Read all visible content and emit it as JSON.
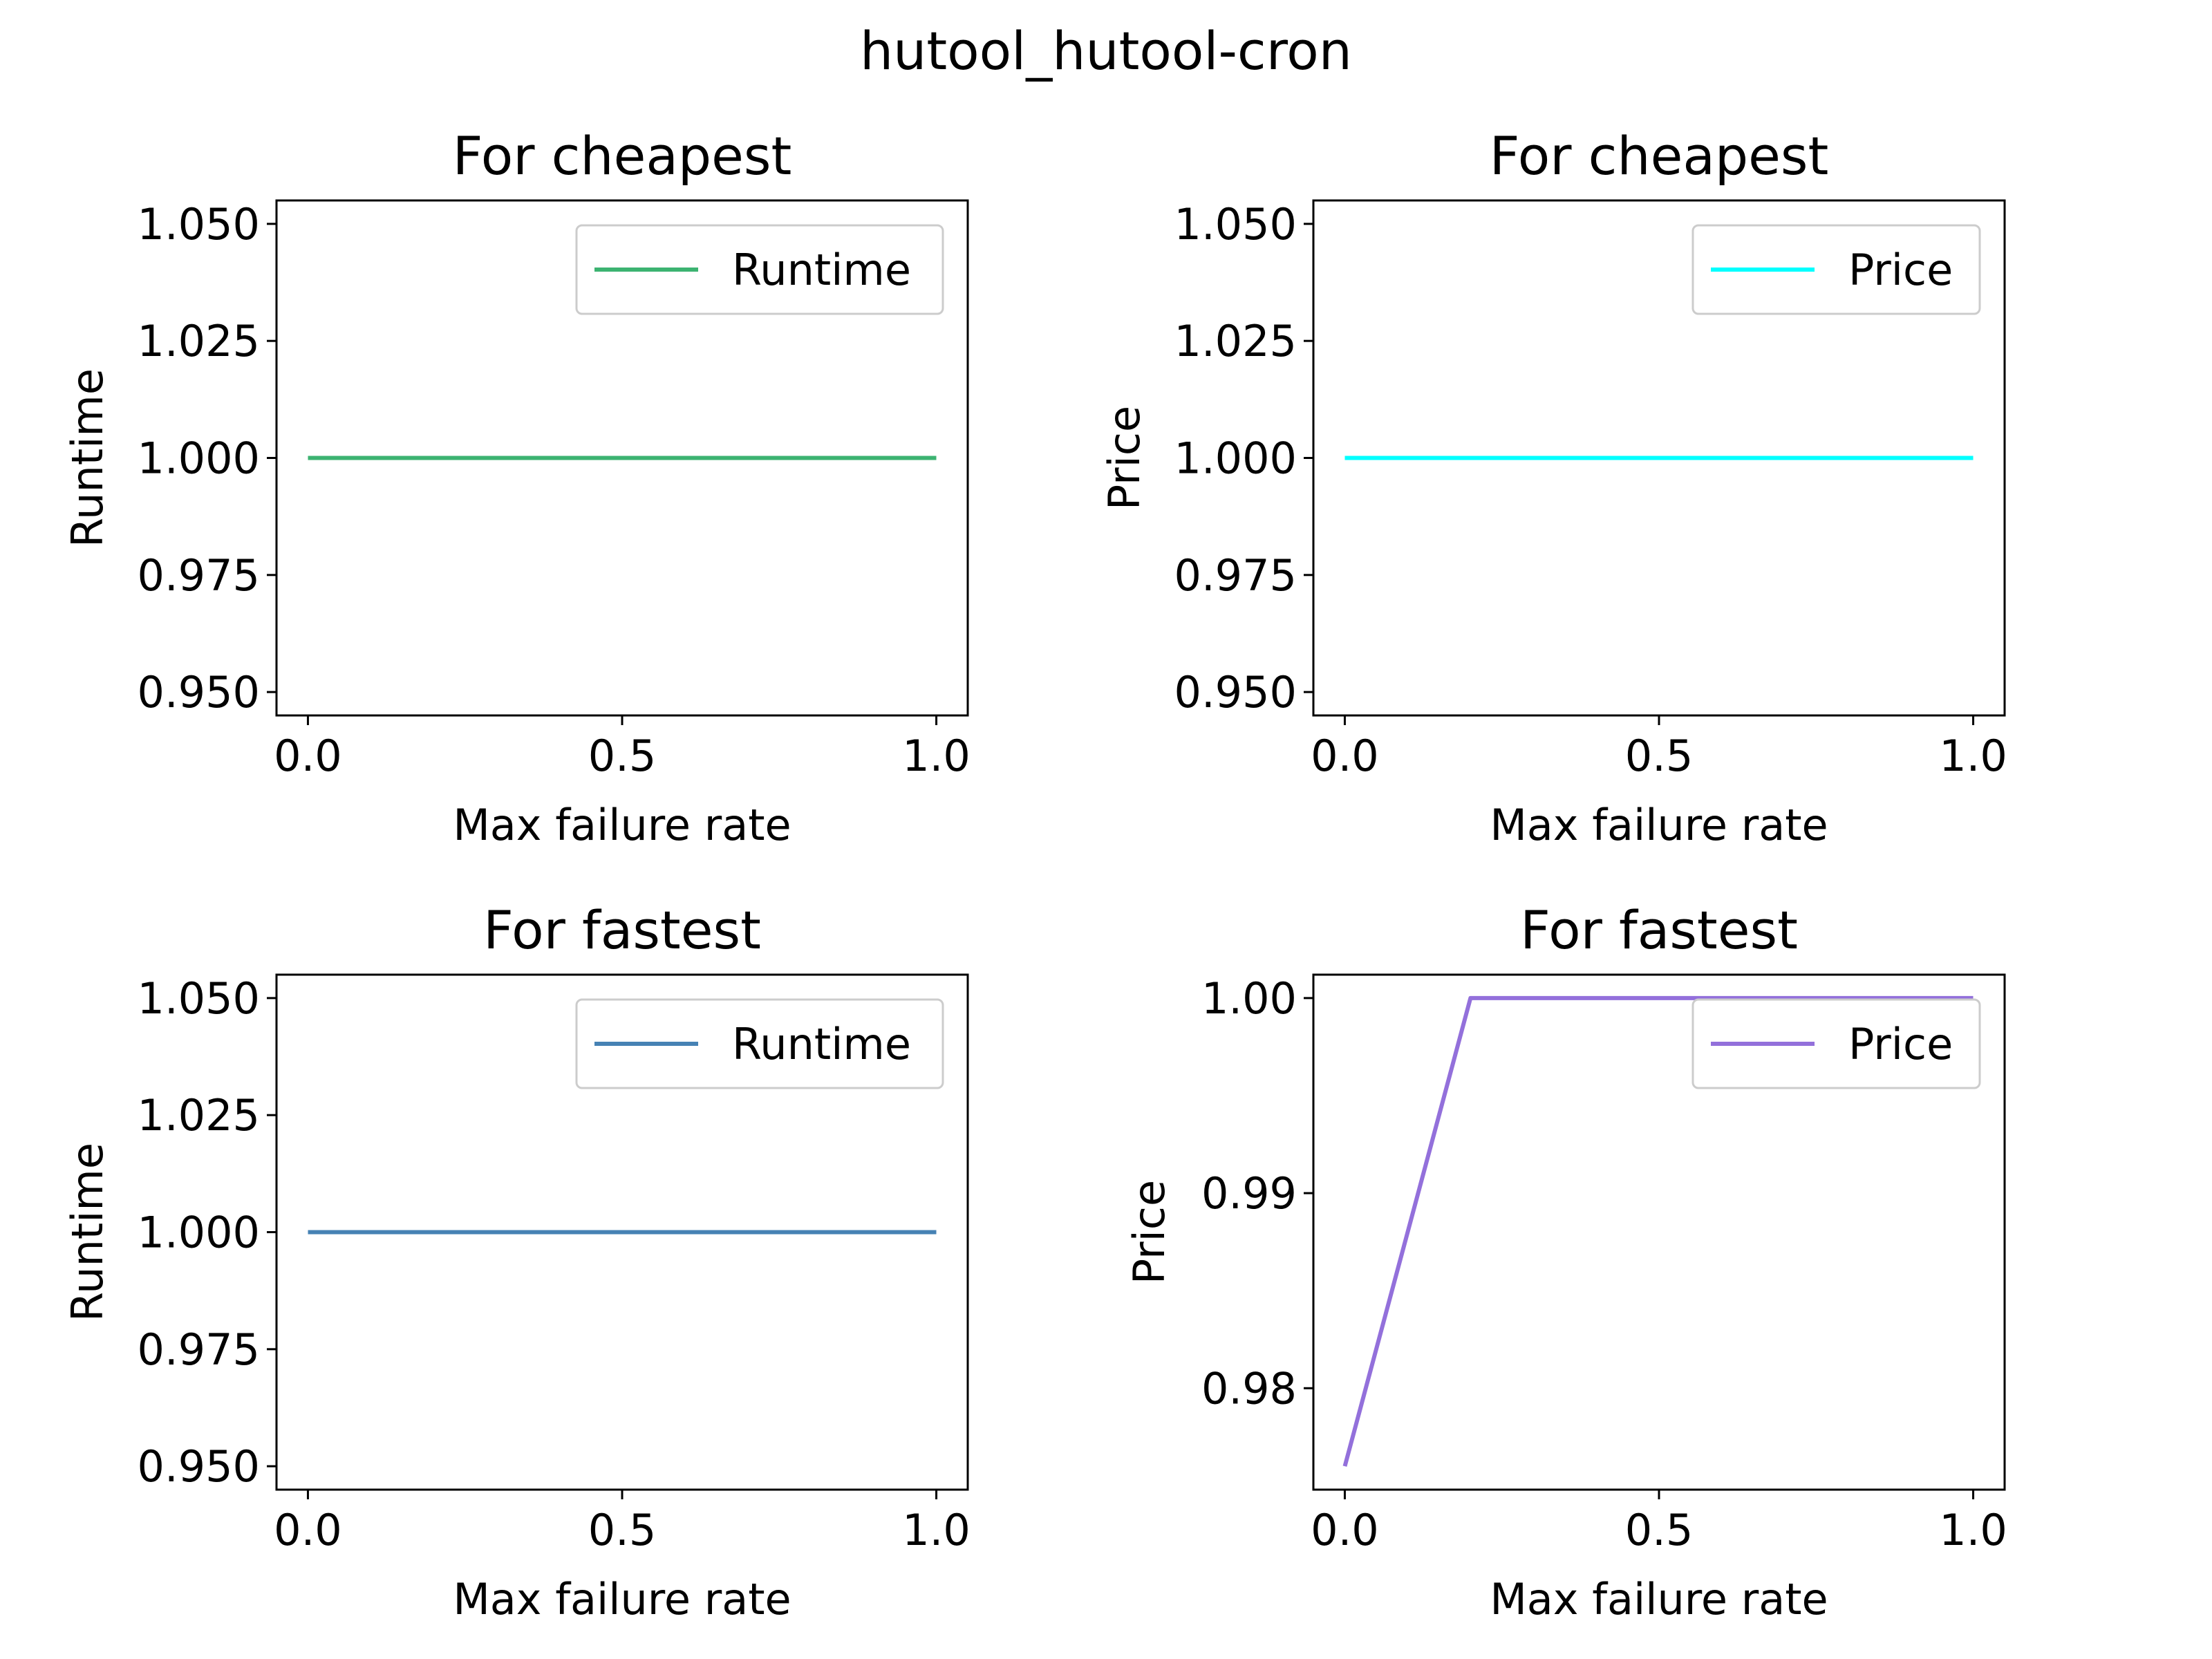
{
  "figure": {
    "suptitle": "hutool_hutool-cron",
    "background": "#ffffff"
  },
  "chart_data": [
    {
      "type": "line",
      "title": "For cheapest",
      "xlabel": "Max failure rate",
      "ylabel": "Runtime",
      "xlim": [
        -0.05,
        1.05
      ],
      "ylim": [
        0.945,
        1.055
      ],
      "xticks": [
        0.0,
        0.5,
        1.0
      ],
      "xtick_labels": [
        "0.0",
        "0.5",
        "1.0"
      ],
      "yticks": [
        0.95,
        0.975,
        1.0,
        1.025,
        1.05
      ],
      "ytick_labels": [
        "0.950",
        "0.975",
        "1.000",
        "1.025",
        "1.050"
      ],
      "legend": "upper right",
      "grid": false,
      "series": [
        {
          "name": "Runtime",
          "color": "#3cb371",
          "x": [
            0.0,
            0.2,
            0.4,
            0.6,
            0.8,
            1.0
          ],
          "y": [
            1.0,
            1.0,
            1.0,
            1.0,
            1.0,
            1.0
          ]
        }
      ]
    },
    {
      "type": "line",
      "title": "For cheapest",
      "xlabel": "Max failure rate",
      "ylabel": "Price",
      "xlim": [
        -0.05,
        1.05
      ],
      "ylim": [
        0.945,
        1.055
      ],
      "xticks": [
        0.0,
        0.5,
        1.0
      ],
      "xtick_labels": [
        "0.0",
        "0.5",
        "1.0"
      ],
      "yticks": [
        0.95,
        0.975,
        1.0,
        1.025,
        1.05
      ],
      "ytick_labels": [
        "0.950",
        "0.975",
        "1.000",
        "1.025",
        "1.050"
      ],
      "legend": "upper right",
      "grid": false,
      "series": [
        {
          "name": "Price",
          "color": "#00ffff",
          "x": [
            0.0,
            0.2,
            0.4,
            0.6,
            0.8,
            1.0
          ],
          "y": [
            1.0,
            1.0,
            1.0,
            1.0,
            1.0,
            1.0
          ]
        }
      ]
    },
    {
      "type": "line",
      "title": "For fastest",
      "xlabel": "Max failure rate",
      "ylabel": "Runtime",
      "xlim": [
        -0.05,
        1.05
      ],
      "ylim": [
        0.945,
        1.055
      ],
      "xticks": [
        0.0,
        0.5,
        1.0
      ],
      "xtick_labels": [
        "0.0",
        "0.5",
        "1.0"
      ],
      "yticks": [
        0.95,
        0.975,
        1.0,
        1.025,
        1.05
      ],
      "ytick_labels": [
        "0.950",
        "0.975",
        "1.000",
        "1.025",
        "1.050"
      ],
      "legend": "upper right",
      "grid": false,
      "series": [
        {
          "name": "Runtime",
          "color": "#4682b4",
          "x": [
            0.0,
            0.2,
            0.4,
            0.6,
            0.8,
            1.0
          ],
          "y": [
            1.0,
            1.0,
            1.0,
            1.0,
            1.0,
            1.0
          ]
        }
      ]
    },
    {
      "type": "line",
      "title": "For fastest",
      "xlabel": "Max failure rate",
      "ylabel": "Price",
      "xlim": [
        -0.05,
        1.05
      ],
      "ylim": [
        0.9748,
        1.0012
      ],
      "xticks": [
        0.0,
        0.5,
        1.0
      ],
      "xtick_labels": [
        "0.0",
        "0.5",
        "1.0"
      ],
      "yticks": [
        0.98,
        0.99,
        1.0
      ],
      "ytick_labels": [
        "0.98",
        "0.99",
        "1.00"
      ],
      "legend": "upper right",
      "grid": false,
      "series": [
        {
          "name": "Price",
          "color": "#9370db",
          "x": [
            0.0,
            0.2,
            0.4,
            0.6,
            0.8,
            1.0
          ],
          "y": [
            0.976,
            1.0,
            1.0,
            1.0,
            1.0,
            1.0
          ]
        }
      ]
    }
  ]
}
